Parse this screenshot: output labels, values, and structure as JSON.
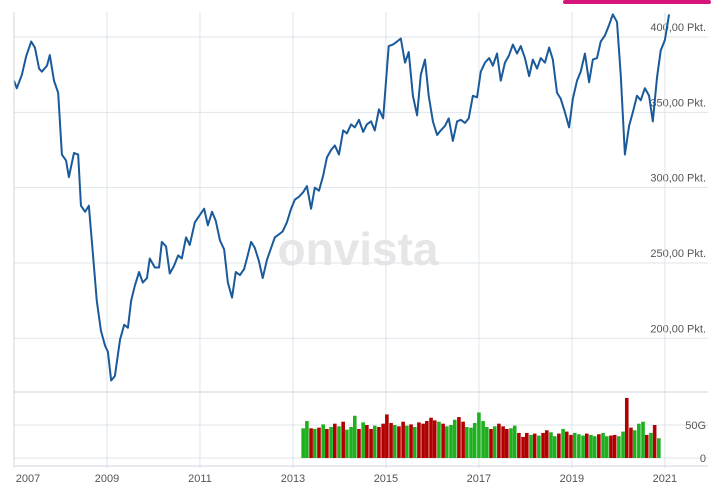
{
  "chart_data": [
    {
      "type": "line",
      "annotation": "onvista",
      "grid": true,
      "x": [
        2007.0,
        2007.06,
        2007.17,
        2007.26,
        2007.37,
        2007.45,
        2007.54,
        2007.6,
        2007.71,
        2007.77,
        2007.86,
        2007.95,
        2008.03,
        2008.12,
        2008.18,
        2008.29,
        2008.38,
        2008.44,
        2008.53,
        2008.61,
        2008.7,
        2008.78,
        2008.87,
        2008.96,
        2009.02,
        2009.09,
        2009.17,
        2009.28,
        2009.37,
        2009.45,
        2009.52,
        2009.6,
        2009.69,
        2009.77,
        2009.86,
        2009.92,
        2010.03,
        2010.12,
        2010.18,
        2010.27,
        2010.35,
        2010.44,
        2010.53,
        2010.61,
        2010.7,
        2010.78,
        2010.89,
        2011.0,
        2011.09,
        2011.17,
        2011.26,
        2011.34,
        2011.43,
        2011.52,
        2011.6,
        2011.69,
        2011.77,
        2011.86,
        2011.95,
        2012.01,
        2012.1,
        2012.18,
        2012.27,
        2012.35,
        2012.44,
        2012.53,
        2012.61,
        2012.7,
        2012.78,
        2012.87,
        2012.96,
        2013.04,
        2013.13,
        2013.22,
        2013.3,
        2013.39,
        2013.47,
        2013.56,
        2013.65,
        2013.73,
        2013.82,
        2013.9,
        2013.99,
        2014.08,
        2014.16,
        2014.25,
        2014.33,
        2014.42,
        2014.51,
        2014.59,
        2014.68,
        2014.76,
        2014.85,
        2014.94,
        2015.0,
        2015.06,
        2015.15,
        2015.24,
        2015.32,
        2015.41,
        2015.49,
        2015.58,
        2015.67,
        2015.75,
        2015.84,
        2015.92,
        2016.01,
        2016.1,
        2016.18,
        2016.27,
        2016.35,
        2016.44,
        2016.53,
        2016.61,
        2016.7,
        2016.78,
        2016.87,
        2016.96,
        2017.04,
        2017.13,
        2017.22,
        2017.3,
        2017.39,
        2017.47,
        2017.56,
        2017.65,
        2017.73,
        2017.82,
        2017.9,
        2017.99,
        2018.08,
        2018.16,
        2018.25,
        2018.33,
        2018.42,
        2018.51,
        2018.59,
        2018.68,
        2018.76,
        2018.85,
        2018.94,
        2019.02,
        2019.11,
        2019.19,
        2019.28,
        2019.37,
        2019.45,
        2019.54,
        2019.62,
        2019.71,
        2019.8,
        2019.88,
        2019.97,
        2020.05,
        2020.14,
        2020.23,
        2020.31,
        2020.4,
        2020.48,
        2020.57,
        2020.66,
        2020.74,
        2020.83,
        2020.91,
        2021.0,
        2021.09
      ],
      "values": [
        371,
        366,
        375,
        387,
        397,
        393,
        379,
        377,
        381,
        388,
        371,
        363,
        322,
        318,
        307,
        323,
        322,
        288,
        284,
        288,
        255,
        225,
        205,
        195,
        191,
        172,
        175,
        199,
        209,
        207,
        225,
        235,
        244,
        237,
        240,
        253,
        247,
        247,
        264,
        261,
        243,
        248,
        255,
        253,
        267,
        262,
        277,
        282,
        286,
        275,
        284,
        278,
        265,
        259,
        237,
        227,
        244,
        242,
        246,
        253,
        264,
        260,
        251,
        240,
        252,
        260,
        267,
        269,
        271,
        277,
        286,
        292,
        294,
        297,
        301,
        286,
        300,
        298,
        308,
        320,
        325,
        328,
        322,
        338,
        336,
        342,
        340,
        345,
        337,
        342,
        344,
        338,
        352,
        346,
        370,
        394,
        395,
        397,
        399,
        383,
        390,
        361,
        348,
        375,
        385,
        361,
        344,
        335,
        338,
        341,
        346,
        331,
        344,
        345,
        343,
        346,
        361,
        360,
        377,
        383,
        386,
        381,
        389,
        371,
        383,
        388,
        395,
        389,
        394,
        386,
        374,
        385,
        379,
        386,
        383,
        393,
        385,
        363,
        359,
        350,
        340,
        359,
        371,
        377,
        389,
        370,
        385,
        386,
        397,
        401,
        408,
        415,
        410,
        375,
        322,
        341,
        350,
        361,
        358,
        366,
        361,
        344,
        373,
        391,
        398,
        415
      ],
      "color": "#1a5a9a",
      "xlim": [
        2007,
        2021.11
      ],
      "ylim": [
        169,
        416.6
      ],
      "xticks": [
        2007,
        2009,
        2011,
        2013,
        2015,
        2017,
        2019,
        2021
      ],
      "yticks": [
        {
          "value": 200,
          "label": "200,00 Pkt."
        },
        {
          "value": 250,
          "label": "250,00 Pkt."
        },
        {
          "value": 300,
          "label": "300,00 Pkt."
        },
        {
          "value": 350,
          "label": "350,00 Pkt."
        },
        {
          "value": 400,
          "label": "400,00 Pkt."
        }
      ]
    },
    {
      "type": "bar",
      "grid": true,
      "x": [
        2013.22,
        2013.3,
        2013.39,
        2013.47,
        2013.56,
        2013.65,
        2013.73,
        2013.82,
        2013.9,
        2013.99,
        2014.08,
        2014.16,
        2014.25,
        2014.33,
        2014.42,
        2014.51,
        2014.59,
        2014.68,
        2014.76,
        2014.85,
        2014.94,
        2015.02,
        2015.11,
        2015.19,
        2015.28,
        2015.37,
        2015.45,
        2015.54,
        2015.62,
        2015.71,
        2015.8,
        2015.88,
        2015.97,
        2016.05,
        2016.14,
        2016.23,
        2016.31,
        2016.4,
        2016.48,
        2016.57,
        2016.66,
        2016.74,
        2016.83,
        2016.91,
        2017.0,
        2017.09,
        2017.17,
        2017.26,
        2017.34,
        2017.43,
        2017.52,
        2017.6,
        2017.69,
        2017.77,
        2017.86,
        2017.95,
        2018.03,
        2018.12,
        2018.2,
        2018.29,
        2018.38,
        2018.46,
        2018.55,
        2018.63,
        2018.72,
        2018.81,
        2018.89,
        2018.98,
        2019.06,
        2019.15,
        2019.24,
        2019.32,
        2019.41,
        2019.49,
        2019.58,
        2019.67,
        2019.75,
        2019.84,
        2019.92,
        2020.01,
        2020.1,
        2020.18,
        2020.27,
        2020.35,
        2020.44,
        2020.53,
        2020.61,
        2020.7,
        2020.78,
        2020.87
      ],
      "values": [
        45,
        56,
        45,
        44,
        46,
        51,
        44,
        47,
        52,
        48,
        55,
        43,
        47,
        64,
        44,
        54,
        50,
        44,
        49,
        47,
        52,
        66,
        53,
        50,
        48,
        55,
        49,
        51,
        47,
        54,
        52,
        56,
        61,
        57,
        55,
        52,
        48,
        50,
        58,
        62,
        55,
        47,
        46,
        53,
        69,
        56,
        47,
        44,
        48,
        52,
        48,
        44,
        45,
        49,
        38,
        32,
        38,
        35,
        37,
        34,
        38,
        42,
        39,
        33,
        37,
        44,
        40,
        35,
        38,
        36,
        34,
        37,
        35,
        33,
        36,
        38,
        33,
        34,
        35,
        33,
        40,
        91,
        46,
        42,
        52,
        55,
        35,
        38,
        50,
        30
      ],
      "colors": [
        "#1fb01f",
        "#1fb01f",
        "#b00000",
        "#1fb01f",
        "#b00000",
        "#1fb01f",
        "#b00000",
        "#1fb01f",
        "#b00000",
        "#1fb01f",
        "#b00000",
        "#1fb01f",
        "#1fb01f",
        "#1fb01f",
        "#b00000",
        "#1fb01f",
        "#b00000",
        "#b00000",
        "#1fb01f",
        "#b00000",
        "#b00000",
        "#b00000",
        "#b00000",
        "#1fb01f",
        "#b00000",
        "#b00000",
        "#1fb01f",
        "#b00000",
        "#1fb01f",
        "#b00000",
        "#b00000",
        "#b00000",
        "#b00000",
        "#b00000",
        "#1fb01f",
        "#b00000",
        "#1fb01f",
        "#1fb01f",
        "#1fb01f",
        "#b00000",
        "#b00000",
        "#1fb01f",
        "#1fb01f",
        "#1fb01f",
        "#1fb01f",
        "#1fb01f",
        "#1fb01f",
        "#b00000",
        "#1fb01f",
        "#b00000",
        "#b00000",
        "#b00000",
        "#1fb01f",
        "#1fb01f",
        "#b00000",
        "#b00000",
        "#b00000",
        "#1fb01f",
        "#b00000",
        "#1fb01f",
        "#b00000",
        "#b00000",
        "#1fb01f",
        "#1fb01f",
        "#b00000",
        "#1fb01f",
        "#b00000",
        "#b00000",
        "#1fb01f",
        "#1fb01f",
        "#1fb01f",
        "#b00000",
        "#1fb01f",
        "#1fb01f",
        "#b00000",
        "#1fb01f",
        "#1fb01f",
        "#b00000",
        "#b00000",
        "#1fb01f",
        "#1fb01f",
        "#b00000",
        "#b00000",
        "#1fb01f",
        "#1fb01f",
        "#1fb01f",
        "#b00000",
        "#1fb01f",
        "#b00000",
        "#1fb01f"
      ],
      "xlim": [
        2007,
        2021.11
      ],
      "ylim": [
        0,
        100
      ],
      "yticks": [
        0,
        {
          "value": 50,
          "label": "50G"
        }
      ]
    }
  ]
}
